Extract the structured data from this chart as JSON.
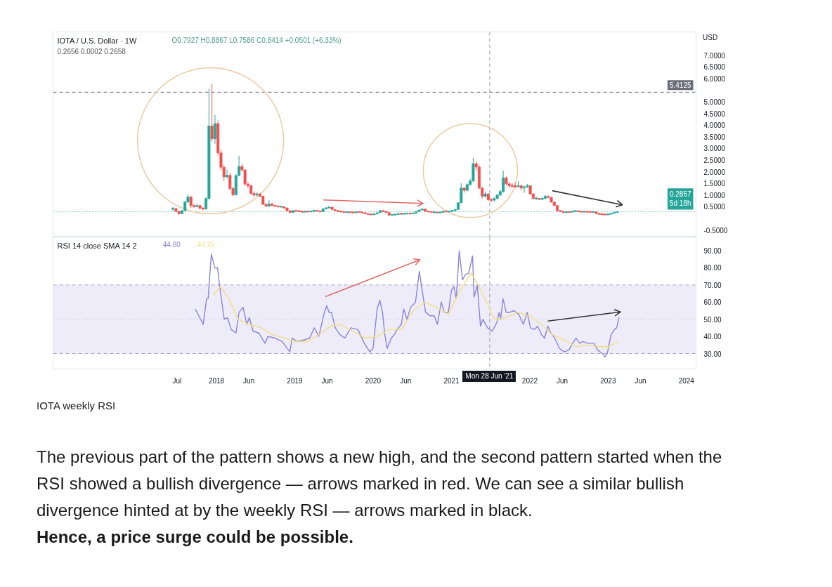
{
  "chart_data": [
    {
      "type": "candlestick",
      "title": "IOTA / U.S. Dollar · 1W",
      "subtitle": "O0.7927 H0.8867 L0.7586 C0.8414 +0.0501 (+6.33%)",
      "ylabel": "USD",
      "annotations": [
        "0.2656  0.0002  0.2658"
      ],
      "x": [
        "2017-06-12",
        "2017-06-26",
        "2017-07-10",
        "2017-07-24",
        "2017-08-07",
        "2017-08-21",
        "2017-09-04",
        "2017-09-18",
        "2017-10-02",
        "2017-10-16",
        "2017-10-30",
        "2017-11-13",
        "2017-11-27",
        "2017-12-11",
        "2017-12-25",
        "2018-01-08",
        "2018-01-22",
        "2018-02-05",
        "2018-02-19",
        "2018-03-05",
        "2018-03-19",
        "2018-04-02",
        "2018-04-16",
        "2018-04-30",
        "2018-05-14",
        "2018-05-28",
        "2018-06-11",
        "2018-06-25",
        "2018-07-09",
        "2018-07-23",
        "2018-08-06",
        "2018-08-20",
        "2018-09-03",
        "2018-09-17",
        "2018-10-01",
        "2018-10-15",
        "2018-10-29",
        "2018-11-12",
        "2018-11-26",
        "2018-12-10",
        "2018-12-24",
        "2019-01-07",
        "2019-01-21",
        "2019-02-04",
        "2019-02-18",
        "2019-03-04",
        "2019-03-18",
        "2019-04-01",
        "2019-04-15",
        "2019-04-29",
        "2019-05-13",
        "2019-05-27",
        "2019-06-10",
        "2019-06-24",
        "2019-07-08",
        "2019-07-22",
        "2019-08-05",
        "2019-08-19",
        "2019-09-02",
        "2019-09-16",
        "2019-09-30",
        "2019-10-14",
        "2019-10-28",
        "2019-11-11",
        "2019-11-25",
        "2019-12-09",
        "2019-12-23",
        "2020-01-06",
        "2020-01-20",
        "2020-02-03",
        "2020-02-17",
        "2020-03-02",
        "2020-03-16",
        "2020-03-30",
        "2020-04-13",
        "2020-04-27",
        "2020-05-11",
        "2020-05-25",
        "2020-06-08",
        "2020-06-22",
        "2020-07-06",
        "2020-07-20",
        "2020-08-03",
        "2020-08-17",
        "2020-08-31",
        "2020-09-14",
        "2020-09-28",
        "2020-10-12",
        "2020-10-26",
        "2020-11-09",
        "2020-11-23",
        "2020-12-07",
        "2020-12-21",
        "2021-01-04",
        "2021-01-18",
        "2021-02-01",
        "2021-02-15",
        "2021-03-01",
        "2021-03-15",
        "2021-03-29",
        "2021-04-12",
        "2021-04-26",
        "2021-05-10",
        "2021-05-24",
        "2021-06-07",
        "2021-06-21",
        "2021-07-05",
        "2021-07-19",
        "2021-08-02",
        "2021-08-16",
        "2021-08-30",
        "2021-09-13",
        "2021-09-27",
        "2021-10-11",
        "2021-10-25",
        "2021-11-08",
        "2021-11-22",
        "2021-12-06",
        "2021-12-20",
        "2022-01-03",
        "2022-01-17",
        "2022-01-31",
        "2022-02-14",
        "2022-02-28",
        "2022-03-14",
        "2022-03-28",
        "2022-04-11",
        "2022-04-25",
        "2022-05-09",
        "2022-05-23",
        "2022-06-06",
        "2022-06-20",
        "2022-07-04",
        "2022-07-18",
        "2022-08-01",
        "2022-08-15",
        "2022-08-29",
        "2022-09-12",
        "2022-09-26",
        "2022-10-10",
        "2022-10-24",
        "2022-11-07",
        "2022-11-21",
        "2022-12-05",
        "2022-12-19",
        "2023-01-02",
        "2023-01-16",
        "2023-01-30",
        "2023-02-13"
      ],
      "ohlc": [
        [
          0.4,
          0.5,
          0.33,
          0.42
        ],
        [
          0.42,
          0.45,
          0.28,
          0.3
        ],
        [
          0.3,
          0.32,
          0.15,
          0.2
        ],
        [
          0.2,
          0.36,
          0.18,
          0.33
        ],
        [
          0.33,
          0.75,
          0.3,
          0.7
        ],
        [
          0.7,
          1.04,
          0.65,
          0.92
        ],
        [
          0.92,
          0.95,
          0.45,
          0.55
        ],
        [
          0.55,
          0.62,
          0.45,
          0.5
        ],
        [
          0.5,
          0.62,
          0.48,
          0.55
        ],
        [
          0.55,
          0.58,
          0.4,
          0.43
        ],
        [
          0.43,
          0.48,
          0.35,
          0.4
        ],
        [
          0.4,
          0.9,
          0.38,
          0.85
        ],
        [
          0.85,
          5.56,
          0.8,
          3.97
        ],
        [
          3.97,
          5.78,
          3.3,
          3.41
        ],
        [
          3.41,
          4.43,
          3.2,
          4.07
        ],
        [
          4.07,
          4.2,
          2.7,
          2.81
        ],
        [
          2.81,
          2.95,
          2.05,
          2.19
        ],
        [
          2.19,
          2.3,
          1.6,
          1.78
        ],
        [
          1.78,
          2.1,
          1.7,
          1.85
        ],
        [
          1.85,
          1.95,
          1.2,
          1.28
        ],
        [
          1.28,
          1.35,
          0.95,
          1.01
        ],
        [
          1.01,
          1.9,
          0.98,
          1.84
        ],
        [
          1.84,
          2.69,
          1.8,
          2.23
        ],
        [
          2.23,
          2.35,
          2.0,
          2.08
        ],
        [
          2.08,
          2.1,
          1.4,
          1.47
        ],
        [
          1.47,
          1.55,
          1.3,
          1.4
        ],
        [
          1.4,
          1.45,
          1.0,
          1.07
        ],
        [
          1.07,
          1.15,
          0.9,
          1.0
        ],
        [
          1.0,
          1.12,
          0.95,
          1.05
        ],
        [
          1.05,
          1.1,
          0.9,
          0.95
        ],
        [
          0.95,
          0.98,
          0.58,
          0.6
        ],
        [
          0.6,
          0.65,
          0.48,
          0.52
        ],
        [
          0.52,
          0.78,
          0.5,
          0.62
        ],
        [
          0.62,
          0.66,
          0.52,
          0.55
        ],
        [
          0.55,
          0.58,
          0.5,
          0.52
        ],
        [
          0.52,
          0.55,
          0.48,
          0.5
        ],
        [
          0.5,
          0.53,
          0.47,
          0.5
        ],
        [
          0.5,
          0.52,
          0.4,
          0.45
        ],
        [
          0.45,
          0.46,
          0.3,
          0.33
        ],
        [
          0.33,
          0.35,
          0.22,
          0.25
        ],
        [
          0.25,
          0.36,
          0.24,
          0.33
        ],
        [
          0.33,
          0.35,
          0.3,
          0.32
        ],
        [
          0.32,
          0.33,
          0.28,
          0.3
        ],
        [
          0.3,
          0.31,
          0.25,
          0.27
        ],
        [
          0.27,
          0.32,
          0.26,
          0.3
        ],
        [
          0.3,
          0.31,
          0.28,
          0.29
        ],
        [
          0.29,
          0.32,
          0.28,
          0.3
        ],
        [
          0.3,
          0.37,
          0.29,
          0.34
        ],
        [
          0.34,
          0.35,
          0.3,
          0.31
        ],
        [
          0.31,
          0.32,
          0.27,
          0.29
        ],
        [
          0.29,
          0.45,
          0.28,
          0.4
        ],
        [
          0.4,
          0.48,
          0.38,
          0.45
        ],
        [
          0.45,
          0.52,
          0.42,
          0.48
        ],
        [
          0.48,
          0.49,
          0.35,
          0.38
        ],
        [
          0.38,
          0.4,
          0.3,
          0.33
        ],
        [
          0.33,
          0.35,
          0.28,
          0.3
        ],
        [
          0.3,
          0.31,
          0.26,
          0.28
        ],
        [
          0.28,
          0.29,
          0.25,
          0.26
        ],
        [
          0.26,
          0.29,
          0.25,
          0.27
        ],
        [
          0.27,
          0.29,
          0.25,
          0.26
        ],
        [
          0.26,
          0.27,
          0.22,
          0.24
        ],
        [
          0.24,
          0.3,
          0.23,
          0.28
        ],
        [
          0.28,
          0.3,
          0.26,
          0.27
        ],
        [
          0.27,
          0.28,
          0.23,
          0.24
        ],
        [
          0.24,
          0.25,
          0.19,
          0.2
        ],
        [
          0.2,
          0.21,
          0.16,
          0.17
        ],
        [
          0.17,
          0.18,
          0.15,
          0.16
        ],
        [
          0.16,
          0.2,
          0.15,
          0.19
        ],
        [
          0.19,
          0.26,
          0.18,
          0.24
        ],
        [
          0.24,
          0.36,
          0.23,
          0.33
        ],
        [
          0.33,
          0.34,
          0.27,
          0.3
        ],
        [
          0.3,
          0.31,
          0.22,
          0.25
        ],
        [
          0.25,
          0.26,
          0.1,
          0.14
        ],
        [
          0.14,
          0.16,
          0.13,
          0.15
        ],
        [
          0.15,
          0.18,
          0.14,
          0.17
        ],
        [
          0.17,
          0.21,
          0.16,
          0.2
        ],
        [
          0.2,
          0.21,
          0.18,
          0.19
        ],
        [
          0.19,
          0.21,
          0.18,
          0.2
        ],
        [
          0.2,
          0.23,
          0.19,
          0.21
        ],
        [
          0.21,
          0.22,
          0.19,
          0.2
        ],
        [
          0.2,
          0.23,
          0.19,
          0.22
        ],
        [
          0.22,
          0.31,
          0.21,
          0.3
        ],
        [
          0.3,
          0.38,
          0.28,
          0.36
        ],
        [
          0.36,
          0.42,
          0.34,
          0.4
        ],
        [
          0.4,
          0.41,
          0.28,
          0.3
        ],
        [
          0.3,
          0.31,
          0.27,
          0.29
        ],
        [
          0.29,
          0.3,
          0.25,
          0.26
        ],
        [
          0.26,
          0.28,
          0.25,
          0.26
        ],
        [
          0.26,
          0.27,
          0.23,
          0.24
        ],
        [
          0.24,
          0.27,
          0.23,
          0.26
        ],
        [
          0.26,
          0.32,
          0.25,
          0.3
        ],
        [
          0.3,
          0.31,
          0.28,
          0.29
        ],
        [
          0.29,
          0.31,
          0.26,
          0.3
        ],
        [
          0.3,
          0.36,
          0.29,
          0.33
        ],
        [
          0.33,
          0.4,
          0.31,
          0.38
        ],
        [
          0.38,
          0.7,
          0.37,
          0.67
        ],
        [
          0.67,
          1.5,
          0.65,
          1.3
        ],
        [
          1.3,
          1.35,
          1.1,
          1.2
        ],
        [
          1.2,
          1.5,
          1.15,
          1.45
        ],
        [
          1.45,
          1.7,
          1.4,
          1.6
        ],
        [
          1.6,
          2.6,
          1.55,
          2.35
        ],
        [
          2.35,
          2.45,
          2.05,
          2.2
        ],
        [
          2.2,
          2.3,
          1.25,
          1.3
        ],
        [
          1.3,
          1.35,
          0.85,
          0.95
        ],
        [
          0.95,
          1.15,
          0.9,
          1.05
        ],
        [
          1.05,
          1.08,
          0.75,
          0.8
        ],
        [
          0.8,
          0.85,
          0.7,
          0.78
        ],
        [
          0.78,
          0.9,
          0.72,
          0.85
        ],
        [
          0.85,
          1.05,
          0.82,
          1.0
        ],
        [
          1.0,
          1.22,
          0.95,
          1.15
        ],
        [
          1.15,
          2.05,
          1.1,
          1.74
        ],
        [
          1.74,
          1.8,
          1.4,
          1.48
        ],
        [
          1.48,
          1.55,
          1.3,
          1.4
        ],
        [
          1.4,
          1.5,
          1.32,
          1.38
        ],
        [
          1.38,
          1.52,
          1.3,
          1.36
        ],
        [
          1.36,
          1.6,
          1.34,
          1.4
        ],
        [
          1.4,
          1.45,
          1.2,
          1.3
        ],
        [
          1.3,
          1.4,
          1.1,
          1.35
        ],
        [
          1.35,
          1.48,
          1.3,
          1.4
        ],
        [
          1.4,
          1.42,
          1.0,
          1.05
        ],
        [
          1.05,
          1.08,
          0.8,
          0.85
        ],
        [
          0.85,
          0.92,
          0.8,
          0.85
        ],
        [
          0.85,
          0.88,
          0.78,
          0.82
        ],
        [
          0.82,
          0.9,
          0.78,
          0.85
        ],
        [
          0.85,
          1.0,
          0.82,
          0.95
        ],
        [
          0.95,
          0.98,
          0.85,
          0.9
        ],
        [
          0.9,
          0.92,
          0.68,
          0.7
        ],
        [
          0.7,
          0.72,
          0.52,
          0.55
        ],
        [
          0.55,
          0.56,
          0.28,
          0.33
        ],
        [
          0.33,
          0.35,
          0.28,
          0.3
        ],
        [
          0.3,
          0.32,
          0.22,
          0.25
        ],
        [
          0.25,
          0.3,
          0.24,
          0.28
        ],
        [
          0.28,
          0.29,
          0.25,
          0.27
        ],
        [
          0.27,
          0.32,
          0.26,
          0.3
        ],
        [
          0.3,
          0.34,
          0.29,
          0.32
        ],
        [
          0.32,
          0.33,
          0.28,
          0.29
        ],
        [
          0.29,
          0.3,
          0.27,
          0.28
        ],
        [
          0.28,
          0.31,
          0.27,
          0.29
        ],
        [
          0.29,
          0.3,
          0.27,
          0.28
        ],
        [
          0.28,
          0.29,
          0.26,
          0.27
        ],
        [
          0.27,
          0.3,
          0.26,
          0.28
        ],
        [
          0.28,
          0.29,
          0.18,
          0.2
        ],
        [
          0.2,
          0.21,
          0.17,
          0.18
        ],
        [
          0.18,
          0.19,
          0.16,
          0.17
        ],
        [
          0.17,
          0.18,
          0.15,
          0.16
        ],
        [
          0.16,
          0.19,
          0.15,
          0.18
        ],
        [
          0.18,
          0.24,
          0.17,
          0.22
        ],
        [
          0.22,
          0.27,
          0.21,
          0.25
        ],
        [
          0.25,
          0.3,
          0.24,
          0.29
        ]
      ],
      "colors": [
        "#26a69a",
        "#ef5350",
        "#ef5350",
        "#26a69a",
        "#26a69a",
        "#26a69a",
        "#ef5350",
        "#ef5350",
        "#26a69a",
        "#ef5350",
        "#ef5350",
        "#26a69a",
        "#26a69a",
        "#ef5350",
        "#26a69a",
        "#ef5350",
        "#ef5350",
        "#ef5350",
        "#26a69a",
        "#ef5350",
        "#ef5350",
        "#26a69a",
        "#26a69a",
        "#ef5350",
        "#ef5350",
        "#ef5350",
        "#ef5350",
        "#ef5350",
        "#26a69a",
        "#ef5350",
        "#ef5350",
        "#ef5350",
        "#26a69a",
        "#ef5350",
        "#ef5350",
        "#ef5350",
        "#26a69a",
        "#ef5350",
        "#ef5350",
        "#ef5350",
        "#26a69a",
        "#ef5350",
        "#ef5350",
        "#ef5350",
        "#26a69a",
        "#ef5350",
        "#26a69a",
        "#26a69a",
        "#ef5350",
        "#ef5350",
        "#26a69a",
        "#26a69a",
        "#26a69a",
        "#ef5350",
        "#ef5350",
        "#ef5350",
        "#ef5350",
        "#ef5350",
        "#26a69a",
        "#ef5350",
        "#ef5350",
        "#26a69a",
        "#ef5350",
        "#ef5350",
        "#ef5350",
        "#ef5350",
        "#ef5350",
        "#26a69a",
        "#26a69a",
        "#26a69a",
        "#ef5350",
        "#ef5350",
        "#ef5350",
        "#26a69a",
        "#26a69a",
        "#26a69a",
        "#ef5350",
        "#26a69a",
        "#26a69a",
        "#ef5350",
        "#26a69a",
        "#26a69a",
        "#26a69a",
        "#26a69a",
        "#ef5350",
        "#ef5350",
        "#ef5350",
        "#26a69a",
        "#ef5350",
        "#26a69a",
        "#26a69a",
        "#ef5350",
        "#26a69a",
        "#26a69a",
        "#26a69a",
        "#26a69a",
        "#26a69a",
        "#ef5350",
        "#26a69a",
        "#26a69a",
        "#26a69a",
        "#ef5350",
        "#ef5350",
        "#ef5350",
        "#26a69a",
        "#ef5350",
        "#ef5350",
        "#26a69a",
        "#26a69a",
        "#26a69a",
        "#26a69a",
        "#ef5350",
        "#ef5350",
        "#ef5350",
        "#ef5350",
        "#26a69a",
        "#ef5350",
        "#26a69a",
        "#26a69a",
        "#ef5350",
        "#ef5350",
        "#26a69a",
        "#ef5350",
        "#26a69a",
        "#26a69a",
        "#ef5350",
        "#ef5350",
        "#ef5350",
        "#ef5350",
        "#ef5350",
        "#ef5350",
        "#26a69a",
        "#ef5350",
        "#26a69a",
        "#26a69a",
        "#ef5350",
        "#ef5350",
        "#26a69a",
        "#ef5350",
        "#ef5350",
        "#26a69a",
        "#ef5350",
        "#ef5350",
        "#ef5350",
        "#ef5350",
        "#26a69a",
        "#26a69a",
        "#26a69a",
        "#26a69a"
      ],
      "xlim": [
        "2015-12-01",
        "2024-02-15"
      ],
      "ylim": [
        -0.8,
        8.0
      ],
      "yticks": [
        {
          "value": -0.5,
          "label": "-0.5000"
        },
        {
          "value": 0.5,
          "label": "0.5000"
        },
        {
          "value": 1.0,
          "label": "1.0000"
        },
        {
          "value": 1.5,
          "label": "1.5000"
        },
        {
          "value": 2.0,
          "label": "2.0000"
        },
        {
          "value": 2.5,
          "label": "2.5000"
        },
        {
          "value": 3.0,
          "label": "3.0000"
        },
        {
          "value": 3.5,
          "label": "3.5000"
        },
        {
          "value": 4.0,
          "label": "4.0000"
        },
        {
          "value": 4.5,
          "label": "4.5000"
        },
        {
          "value": 5.0,
          "label": "5.0000"
        },
        {
          "value": 6.0,
          "label": "6.0000"
        },
        {
          "value": 6.5,
          "label": "6.5000"
        },
        {
          "value": 7.0,
          "label": "7.0000"
        }
      ],
      "tick_labels": "y",
      "ref_lines": [
        {
          "axis": "y",
          "value": 5.4125,
          "label": "5.4125",
          "color": "#6a6d78",
          "line_style": "dashed"
        },
        {
          "axis": "y",
          "value": 0.2857,
          "label": "0.2857\n5d 18h",
          "color": "#26a69a",
          "line_style": "dotted"
        },
        {
          "axis": "x",
          "value": "2021-06-28",
          "color": "#9598a1",
          "line_style": "dashed"
        }
      ]
    },
    {
      "type": "line",
      "title": "RSI 14 close SMA 14 2",
      "annotations": [
        "44.80",
        "40.25",
        "IOTA weekly RSI",
        "The previous part of the pattern shows a new high, and the second pattern started when the RSI showed a bullish divergence — arrows marked in red. We can see a similar bullish divergence hinted at by the weekly RSI — arrows marked in black.",
        "Hence, a price surge could be possible."
      ],
      "series": [
        {
          "color": "#8a84d6",
          "x": [
            "2017-09-24",
            "2017-10-31",
            "2017-11-16",
            "2017-11-23",
            "2017-12-08",
            "2017-12-24",
            "2018-01-06",
            "2018-01-15",
            "2018-02-06",
            "2018-02-21",
            "2018-03-11",
            "2018-04-02",
            "2018-04-16",
            "2018-05-05",
            "2018-05-23",
            "2018-06-03",
            "2018-06-21",
            "2018-07-17",
            "2018-08-15",
            "2018-08-29",
            "2018-10-01",
            "2018-11-03",
            "2018-12-09",
            "2018-12-20",
            "2019-01-12",
            "2019-02-14",
            "2019-03-11",
            "2019-04-02",
            "2019-04-23",
            "2019-05-19",
            "2019-05-30",
            "2019-06-10",
            "2019-06-21",
            "2019-07-09",
            "2019-07-31",
            "2019-08-22",
            "2019-09-20",
            "2019-10-23",
            "2019-11-21",
            "2019-12-17",
            "2020-01-01",
            "2020-01-20",
            "2020-02-02",
            "2020-02-14",
            "2020-02-25",
            "2020-03-07",
            "2020-03-26",
            "2020-04-09",
            "2020-04-27",
            "2020-05-12",
            "2020-05-23",
            "2020-06-07",
            "2020-06-25",
            "2020-07-17",
            "2020-08-04",
            "2020-08-18",
            "2020-09-02",
            "2020-09-24",
            "2020-10-12",
            "2020-10-27",
            "2020-11-14",
            "2020-11-28",
            "2020-12-17",
            "2021-01-01",
            "2021-01-12",
            "2021-01-23",
            "2021-02-06",
            "2021-02-21",
            "2021-03-07",
            "2021-03-22",
            "2021-04-09",
            "2021-04-16",
            "2021-05-01",
            "2021-05-16",
            "2021-05-27",
            "2021-06-18",
            "2021-07-09",
            "2021-07-31",
            "2021-08-11",
            "2021-08-18",
            "2021-08-29",
            "2021-09-13",
            "2021-09-28",
            "2021-10-19",
            "2021-11-10",
            "2021-12-02",
            "2021-12-20",
            "2022-01-04",
            "2022-01-23",
            "2022-02-06",
            "2022-02-25",
            "2022-03-11",
            "2022-03-26",
            "2022-04-05",
            "2022-04-27",
            "2022-05-19",
            "2022-06-10",
            "2022-07-02",
            "2022-07-20",
            "2022-08-04",
            "2022-08-22",
            "2022-09-06",
            "2022-09-28",
            "2022-10-27",
            "2022-11-14",
            "2022-12-06",
            "2022-12-17",
            "2022-12-28",
            "2023-01-15",
            "2023-01-30",
            "2023-02-10",
            "2023-02-21"
          ],
          "values": [
            56,
            47,
            62,
            62,
            88,
            80,
            80,
            70,
            50,
            51,
            44,
            42,
            54,
            57,
            47,
            51,
            43,
            42,
            36,
            40,
            39,
            37,
            31,
            39,
            37,
            38,
            39,
            45,
            40,
            54,
            58,
            54,
            54,
            45,
            41,
            39,
            45,
            44,
            36,
            31,
            33,
            56,
            61,
            54,
            41,
            33,
            39,
            41,
            45,
            47,
            56,
            50,
            57,
            60,
            78,
            66,
            54,
            52,
            52,
            47,
            60,
            54,
            54,
            67,
            69,
            62,
            90,
            73,
            76,
            77,
            87,
            63,
            70,
            46,
            50,
            45,
            43,
            48,
            54,
            50,
            62,
            54,
            54,
            55,
            53,
            47,
            54,
            45,
            44,
            46,
            41,
            39,
            46,
            43,
            39,
            33,
            31,
            32,
            36,
            39,
            36,
            37,
            36,
            36,
            32,
            30,
            28,
            30,
            41,
            44,
            45,
            51
          ]
        },
        {
          "color": "#f0df80",
          "x": [
            "2017-12-17",
            "2018-01-19",
            "2018-02-28",
            "2018-04-12",
            "2018-06-03",
            "2018-07-28",
            "2018-09-20",
            "2018-11-14",
            "2019-01-04",
            "2019-02-28",
            "2019-04-23",
            "2019-06-18",
            "2019-07-31",
            "2019-10-01",
            "2019-11-24",
            "2020-01-19",
            "2020-03-18",
            "2020-05-12",
            "2020-07-06",
            "2020-08-29",
            "2020-10-23",
            "2020-12-17",
            "2021-02-06",
            "2021-04-02",
            "2021-05-05",
            "2021-06-18",
            "2021-07-20",
            "2021-09-13",
            "2021-11-07",
            "2022-01-01",
            "2022-02-25",
            "2022-04-16",
            "2022-06-10",
            "2022-08-04",
            "2022-09-28",
            "2022-11-21",
            "2023-01-04",
            "2023-02-17"
          ],
          "values": [
            64,
            69,
            62,
            50,
            47,
            45,
            41,
            39,
            37,
            37,
            41,
            46,
            47,
            43,
            39,
            40,
            44,
            44,
            55,
            60,
            57,
            53,
            66,
            77,
            70,
            59,
            50,
            51,
            54,
            52,
            47,
            41,
            38,
            34,
            35,
            34,
            34,
            37
          ]
        }
      ],
      "xlim": [
        "2015-12-01",
        "2024-02-15"
      ],
      "ylim": [
        21,
        98
      ],
      "xticks": [
        {
          "value": "2017-07-01",
          "label": "Jul"
        },
        {
          "value": "2018-01-01",
          "label": "2018"
        },
        {
          "value": "2018-06-01",
          "label": "Jun"
        },
        {
          "value": "2019-01-01",
          "label": "2019"
        },
        {
          "value": "2019-06-01",
          "label": "Jun"
        },
        {
          "value": "2020-01-01",
          "label": "2020"
        },
        {
          "value": "2020-06-01",
          "label": "Jun"
        },
        {
          "value": "2021-01-01",
          "label": "2021"
        },
        {
          "value": "2022-01-01",
          "label": "2022"
        },
        {
          "value": "2022-06-01",
          "label": "Jun"
        },
        {
          "value": "2023-01-01",
          "label": "2023"
        },
        {
          "value": "2023-06-01",
          "label": "Jun"
        },
        {
          "value": "2024-01-01",
          "label": "2024"
        }
      ],
      "yticks": [
        {
          "value": 30,
          "label": "30.00"
        },
        {
          "value": 40,
          "label": "40.00"
        },
        {
          "value": 50,
          "label": "50.00"
        },
        {
          "value": 60,
          "label": "60.00"
        },
        {
          "value": 70,
          "label": "70.00"
        },
        {
          "value": 80,
          "label": "80.00"
        },
        {
          "value": 90,
          "label": "90.00"
        }
      ],
      "bands": [
        {
          "axis": "y",
          "from": 30,
          "to": 70,
          "color": "#efecfa"
        }
      ],
      "ref_lines": [
        {
          "axis": "y",
          "value": 70,
          "color": "#a8a6c4",
          "line_style": "dashed"
        },
        {
          "axis": "y",
          "value": 50,
          "color": "#c4c2d8",
          "line_style": "dotted"
        },
        {
          "axis": "y",
          "value": 30,
          "color": "#a8a6c4",
          "line_style": "dashed"
        },
        {
          "axis": "x",
          "value": "2021-06-28",
          "label": "Mon 28 Jun '21",
          "color": "#9598a1",
          "line_style": "dashed"
        }
      ]
    }
  ]
}
